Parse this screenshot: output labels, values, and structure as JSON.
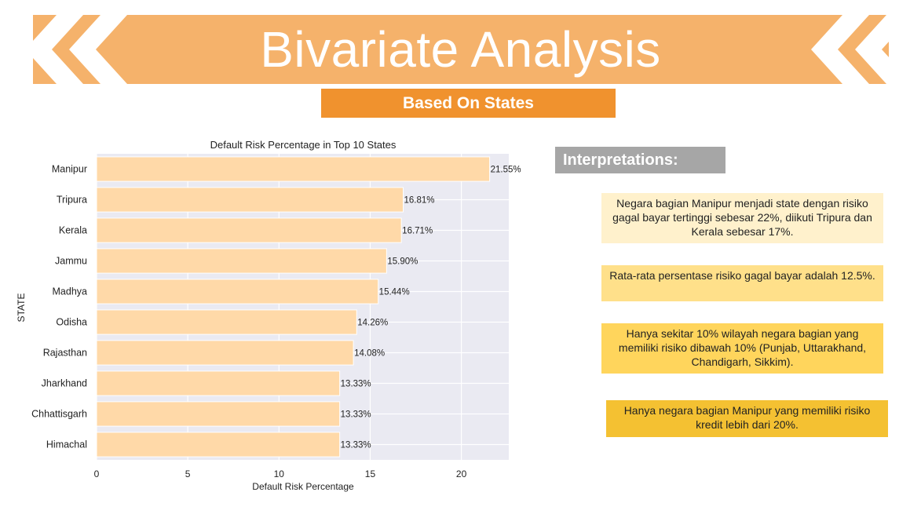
{
  "header": {
    "title": "Bivariate Analysis",
    "subtitle": "Based On States"
  },
  "colors": {
    "banner": "#F5B26B",
    "subtitle_bg": "#F0922E",
    "bar_fill": "#FFD9A8",
    "plot_bg": "#EAEAF2"
  },
  "chart_data": {
    "type": "bar",
    "orientation": "horizontal",
    "title": "Default Risk Percentage in Top 10 States",
    "xlabel": "Default Risk Percentage",
    "ylabel": "STATE",
    "categories": [
      "Manipur",
      "Tripura",
      "Kerala",
      "Jammu",
      "Madhya",
      "Odisha",
      "Rajasthan",
      "Jharkhand",
      "Chhattisgarh",
      "Himachal"
    ],
    "values": [
      21.55,
      16.81,
      16.71,
      15.9,
      15.44,
      14.26,
      14.08,
      13.33,
      13.33,
      13.33
    ],
    "value_labels": [
      "21.55%",
      "16.81%",
      "16.71%",
      "15.90%",
      "15.44%",
      "14.26%",
      "14.08%",
      "13.33%",
      "13.33%",
      "13.33%"
    ],
    "xticks": [
      0,
      5,
      10,
      15,
      20
    ],
    "xlim": [
      0,
      22.6
    ],
    "grid": true
  },
  "interpretations": {
    "heading": "Interpretations:",
    "items": [
      "Negara bagian Manipur menjadi state dengan risiko gagal bayar tertinggi sebesar 22%, diikuti Tripura dan Kerala sebesar 17%.",
      "Rata-rata persentase risiko gagal bayar adalah 12.5%.",
      "Hanya sekitar 10% wilayah negara bagian yang memiliki risiko dibawah 10% (Punjab, Uttarakhand, Chandigarh, Sikkim).",
      "Hanya negara bagian Manipur yang memiliki risiko kredit lebih dari 20%."
    ]
  }
}
